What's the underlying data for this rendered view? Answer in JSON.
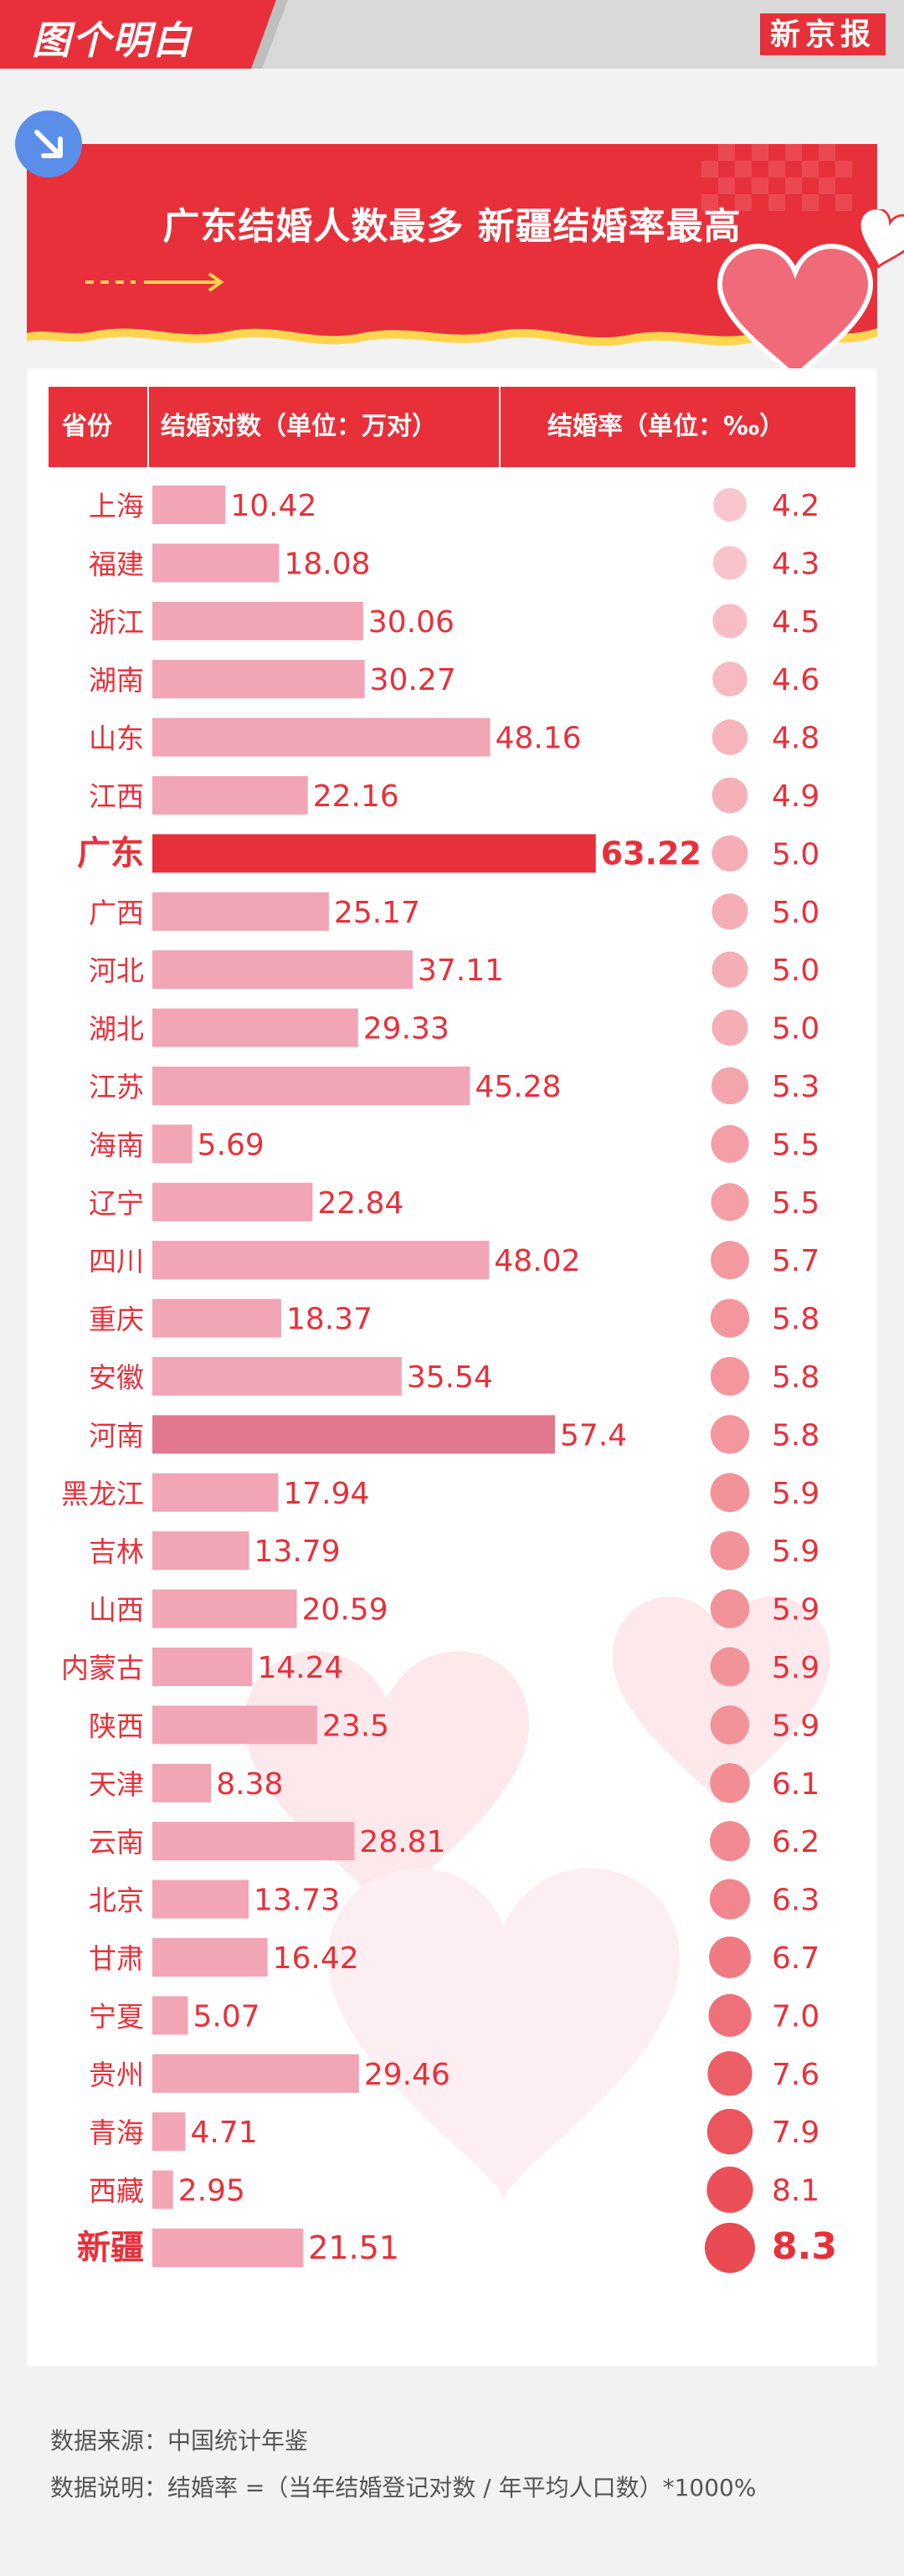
{
  "brand": {
    "logo": "图个明白",
    "newspaper": "新京报"
  },
  "title": "广东结婚人数最多  新疆结婚率最高",
  "table_header": {
    "province": "省份",
    "couples": "结婚对数（单位：万对）",
    "rate": "结婚率（单位：‰）"
  },
  "chart_data": {
    "type": "table",
    "columns": [
      "省份",
      "结婚对数（单位：万对）",
      "结婚率（单位：‰）"
    ],
    "rows": [
      {
        "province": "上海",
        "couples": 10.42,
        "rate": "4.2"
      },
      {
        "province": "福建",
        "couples": 18.08,
        "rate": "4.3"
      },
      {
        "province": "浙江",
        "couples": 30.06,
        "rate": "4.5"
      },
      {
        "province": "湖南",
        "couples": 30.27,
        "rate": "4.6"
      },
      {
        "province": "山东",
        "couples": 48.16,
        "rate": "4.8"
      },
      {
        "province": "江西",
        "couples": 22.16,
        "rate": "4.9"
      },
      {
        "province": "广东",
        "couples": 63.22,
        "rate": "5.0",
        "highlight": "couples"
      },
      {
        "province": "广西",
        "couples": 25.17,
        "rate": "5.0"
      },
      {
        "province": "河北",
        "couples": 37.11,
        "rate": "5.0"
      },
      {
        "province": "湖北",
        "couples": 29.33,
        "rate": "5.0"
      },
      {
        "province": "江苏",
        "couples": 45.28,
        "rate": "5.3"
      },
      {
        "province": "海南",
        "couples": 5.69,
        "rate": "5.5"
      },
      {
        "province": "辽宁",
        "couples": 22.84,
        "rate": "5.5"
      },
      {
        "province": "四川",
        "couples": 48.02,
        "rate": "5.7"
      },
      {
        "province": "重庆",
        "couples": 18.37,
        "rate": "5.8"
      },
      {
        "province": "安徽",
        "couples": 35.54,
        "rate": "5.8"
      },
      {
        "province": "河南",
        "couples": 57.4,
        "rate": "5.8"
      },
      {
        "province": "黑龙江",
        "couples": 17.94,
        "rate": "5.9"
      },
      {
        "province": "吉林",
        "couples": 13.79,
        "rate": "5.9"
      },
      {
        "province": "山西",
        "couples": 20.59,
        "rate": "5.9"
      },
      {
        "province": "内蒙古",
        "couples": 14.24,
        "rate": "5.9"
      },
      {
        "province": "陕西",
        "couples": 23.5,
        "rate": "5.9"
      },
      {
        "province": "天津",
        "couples": 8.38,
        "rate": "6.1"
      },
      {
        "province": "云南",
        "couples": 28.81,
        "rate": "6.2"
      },
      {
        "province": "北京",
        "couples": 13.73,
        "rate": "6.3"
      },
      {
        "province": "甘肃",
        "couples": 16.42,
        "rate": "6.7"
      },
      {
        "province": "宁夏",
        "couples": 5.07,
        "rate": "7.0"
      },
      {
        "province": "贵州",
        "couples": 29.46,
        "rate": "7.6"
      },
      {
        "province": "青海",
        "couples": 4.71,
        "rate": "7.9"
      },
      {
        "province": "西藏",
        "couples": 2.95,
        "rate": "8.1"
      },
      {
        "province": "新疆",
        "couples": 21.51,
        "rate": "8.3",
        "highlight": "rate"
      }
    ],
    "colors": {
      "bar": "#f2a5b5",
      "bar_dark": "#e2788d",
      "highlight": "#e8303a",
      "text": "#e8303a",
      "rate_light": "#f8c6cd",
      "rate_dark": "#ea4a52"
    }
  },
  "footer": {
    "source": "数据来源：中国统计年鉴",
    "note": "数据说明：结婚率 =（当年结婚登记对数 / 年平均人口数）*1000%"
  }
}
